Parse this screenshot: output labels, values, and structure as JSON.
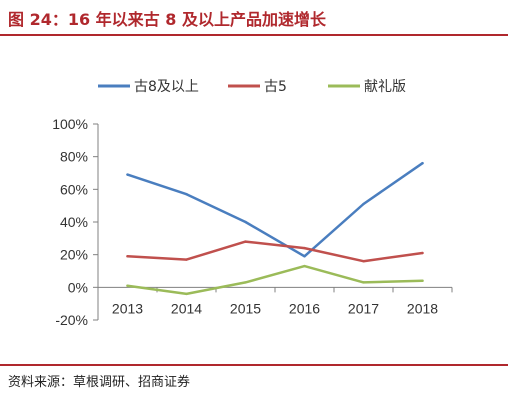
{
  "figure_title": "图 24：16 年以来古 8 及以上产品加速增长",
  "source_note": "资料来源：草根调研、招商证券",
  "chart_data": {
    "type": "line",
    "title": "",
    "xlabel": "",
    "ylabel": "",
    "categories": [
      "2013",
      "2014",
      "2015",
      "2016",
      "2017",
      "2018"
    ],
    "ylim": [
      -20,
      100
    ],
    "yticks": [
      -20,
      0,
      20,
      40,
      60,
      80,
      100
    ],
    "ytick_labels": [
      "-20%",
      "0%",
      "20%",
      "40%",
      "60%",
      "80%",
      "100%"
    ],
    "grid": false,
    "legend_position": "top",
    "series": [
      {
        "name": "古8及以上",
        "color": "#4a7ebf",
        "values": [
          69,
          57,
          40,
          19,
          51,
          76
        ]
      },
      {
        "name": "古5",
        "color": "#c0504d",
        "values": [
          19,
          17,
          28,
          24,
          16,
          21
        ]
      },
      {
        "name": "献礼版",
        "color": "#9bbb59",
        "values": [
          1,
          -4,
          3,
          13,
          3,
          4
        ]
      }
    ]
  }
}
